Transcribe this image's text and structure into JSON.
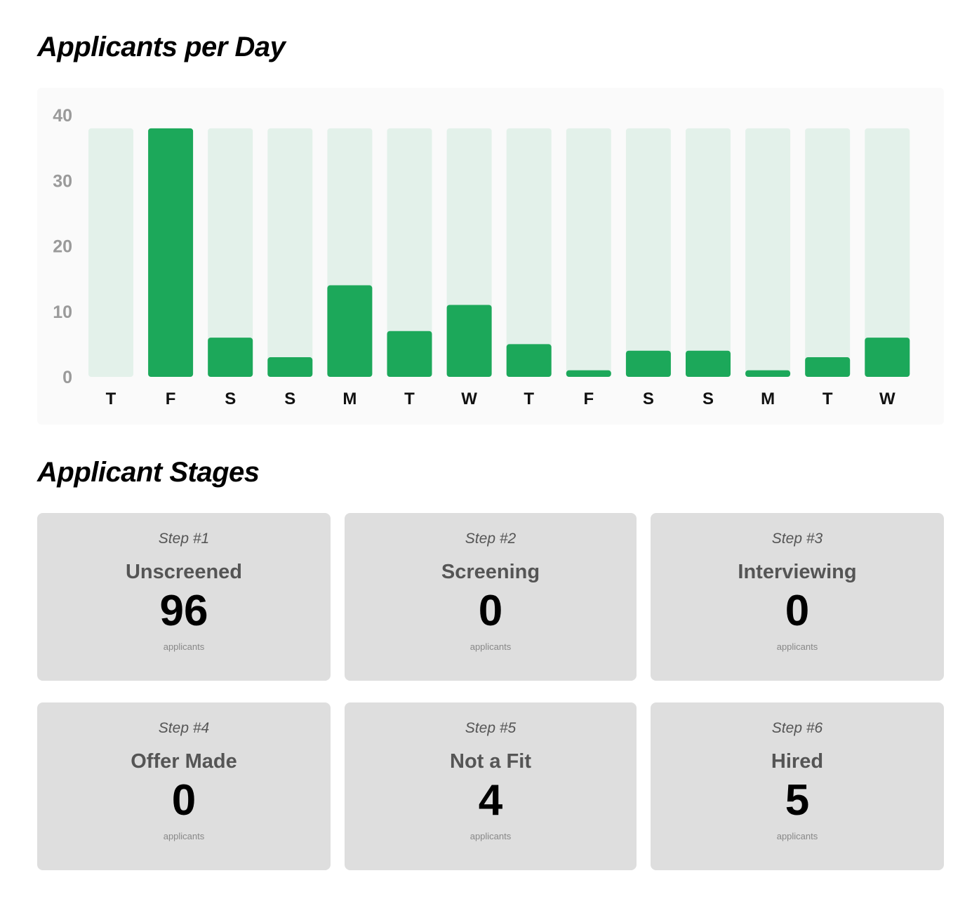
{
  "sections": {
    "chart_title": "Applicants per Day",
    "stages_title": "Applicant Stages"
  },
  "colors": {
    "bar_fill": "#1ca85a",
    "bar_track": "#e3f1ea",
    "panel_bg": "#fafafa",
    "card_bg": "#dedede"
  },
  "chart_data": {
    "type": "bar",
    "title": "Applicants per Day",
    "xlabel": "",
    "ylabel": "",
    "categories": [
      "T",
      "F",
      "S",
      "S",
      "M",
      "T",
      "W",
      "T",
      "F",
      "S",
      "S",
      "M",
      "T",
      "W"
    ],
    "values": [
      0,
      38,
      6,
      3,
      14,
      7,
      11,
      5,
      1,
      4,
      4,
      1,
      3,
      6
    ],
    "track_max": 38,
    "ylim": [
      0,
      40
    ],
    "yticks": [
      0,
      10,
      20,
      30,
      40
    ],
    "grid": false,
    "legend": "none"
  },
  "stages": [
    {
      "step": "Step #1",
      "name": "Unscreened",
      "count": "96",
      "unit": "applicants"
    },
    {
      "step": "Step #2",
      "name": "Screening",
      "count": "0",
      "unit": "applicants"
    },
    {
      "step": "Step #3",
      "name": "Interviewing",
      "count": "0",
      "unit": "applicants"
    },
    {
      "step": "Step #4",
      "name": "Offer Made",
      "count": "0",
      "unit": "applicants"
    },
    {
      "step": "Step #5",
      "name": "Not a Fit",
      "count": "4",
      "unit": "applicants"
    },
    {
      "step": "Step #6",
      "name": "Hired",
      "count": "5",
      "unit": "applicants"
    }
  ]
}
